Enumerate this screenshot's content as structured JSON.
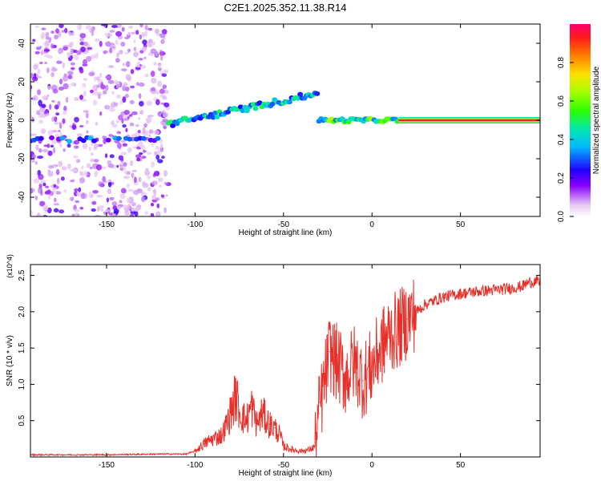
{
  "title": "C2E1.2025.352.11.38.R14",
  "colors": {
    "snr_line": "#e8302a",
    "frame": "#000000",
    "background": "#ffffff"
  },
  "chart_data": [
    {
      "type": "heatmap",
      "title": "C2E1.2025.352.11.38.R14",
      "xlabel": "Height of straight line (km)",
      "ylabel": "Frequency (Hz)",
      "xlim": [
        -193,
        95
      ],
      "ylim": [
        -50,
        50
      ],
      "xticks": [
        -150,
        -100,
        -50,
        0,
        50
      ],
      "yticks": [
        -40,
        -20,
        0,
        20,
        40
      ],
      "colorbar": {
        "label": "Normalized spectral amplitude",
        "range": [
          0.0,
          1.0
        ],
        "ticks": [
          0.0,
          0.2,
          0.4,
          0.6,
          0.8
        ],
        "colormap": "rainbow (white-purple-blue-cyan-green-yellow-orange-red-magenta)"
      },
      "features": [
        {
          "name": "noise region",
          "x_range": [
            -193,
            -115
          ],
          "freq_range": [
            -50,
            50
          ],
          "amplitude": "low (0.05-0.25)"
        },
        {
          "name": "left band",
          "x_range": [
            -193,
            -120
          ],
          "freq": -10,
          "amplitude": 0.3
        },
        {
          "name": "rising branch",
          "x_range": [
            -115,
            -30
          ],
          "freq_range": [
            -2,
            14
          ],
          "amplitude": 0.4
        },
        {
          "name": "central trace",
          "x_range": [
            -30,
            15
          ],
          "freq": 0,
          "amplitude": 0.45
        },
        {
          "name": "steady line",
          "x_range": [
            15,
            95
          ],
          "freq": 0,
          "amplitude": 0.95
        }
      ]
    },
    {
      "type": "line",
      "xlabel": "Height of straight line (km)",
      "ylabel": "SNR (10 * v/v)",
      "y_multiplier": "(x10^4)",
      "xlim": [
        -193,
        95
      ],
      "ylim": [
        0,
        2.65
      ],
      "xticks": [
        -150,
        -100,
        -50,
        0,
        50
      ],
      "yticks": [
        0.5,
        1.0,
        1.5,
        2.0,
        2.5
      ],
      "ytick_labels": [
        "0.5",
        "1.0",
        "1.5",
        "2.0",
        "2.5"
      ],
      "series": [
        {
          "name": "SNR",
          "x": [
            -193,
            -150,
            -120,
            -105,
            -100,
            -95,
            -90,
            -85,
            -82,
            -80,
            -77,
            -75,
            -73,
            -71,
            -68,
            -65,
            -62,
            -58,
            -55,
            -52,
            -50,
            -45,
            -40,
            -35,
            -32,
            -30,
            -27,
            -24,
            -20,
            -15,
            -10,
            -5,
            0,
            5,
            10,
            15,
            20,
            25,
            30,
            40,
            50,
            60,
            70,
            80,
            85,
            88,
            92,
            95
          ],
          "y": [
            0.03,
            0.03,
            0.04,
            0.04,
            0.08,
            0.18,
            0.25,
            0.3,
            0.45,
            0.6,
            0.85,
            0.65,
            0.55,
            0.5,
            0.7,
            0.45,
            0.6,
            0.45,
            0.4,
            0.3,
            0.15,
            0.1,
            0.08,
            0.1,
            0.15,
            0.6,
            1.0,
            1.45,
            1.3,
            1.1,
            1.3,
            1.05,
            1.25,
            1.5,
            1.7,
            1.75,
            1.9,
            2.0,
            2.1,
            2.2,
            2.25,
            2.28,
            2.3,
            2.33,
            2.35,
            2.4,
            2.42,
            2.4
          ]
        }
      ]
    }
  ]
}
